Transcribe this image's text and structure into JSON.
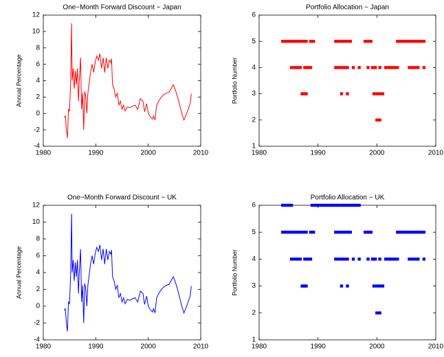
{
  "chart_data": [
    {
      "type": "line",
      "title": "One−Month Forward Discount − Japan",
      "ylabel": "Annual Percentage",
      "color": "#ff0000",
      "xlim": [
        1980,
        2010
      ],
      "xticks": [
        1980,
        1990,
        2000,
        2010
      ],
      "ylim": [
        -4,
        12
      ],
      "yticks": [
        -4,
        -2,
        0,
        2,
        4,
        6,
        8,
        10,
        12
      ],
      "x": [
        1984.0,
        1984.2,
        1984.4,
        1984.6,
        1984.8,
        1985.0,
        1985.2,
        1985.4,
        1985.5,
        1985.7,
        1985.9,
        1986.1,
        1986.3,
        1986.5,
        1986.7,
        1986.9,
        1987.1,
        1987.3,
        1987.5,
        1987.7,
        1987.9,
        1988.1,
        1988.3,
        1988.5,
        1988.8,
        1989.0,
        1989.3,
        1989.6,
        1989.9,
        1990.2,
        1990.5,
        1990.8,
        1991.1,
        1991.4,
        1991.7,
        1992.0,
        1992.3,
        1992.6,
        1992.9,
        1993.0,
        1993.2,
        1993.5,
        1993.8,
        1994.1,
        1994.4,
        1994.7,
        1995.0,
        1995.3,
        1995.6,
        1996.0,
        1996.5,
        1997.0,
        1997.5,
        1998.0,
        1998.5,
        1999.0,
        1999.3,
        1999.7,
        2000.0,
        2000.5,
        2000.8,
        2001.0,
        2001.3,
        2001.6,
        2002.0,
        2002.5,
        2003.0,
        2003.5,
        2004.0,
        2004.5,
        2004.8,
        2005.2,
        2005.6,
        2006.0,
        2006.4,
        2006.8,
        2007.2,
        2007.6,
        2008.0,
        2008.2
      ],
      "values": [
        -0.5,
        -0.3,
        -2.0,
        -3.0,
        0.5,
        0.3,
        3.5,
        11.0,
        4.0,
        5.5,
        3.0,
        5.2,
        3.5,
        5.5,
        1.5,
        4.5,
        6.8,
        0.5,
        2.5,
        -2.0,
        2.7,
        2.0,
        0.0,
        2.5,
        4.0,
        5.0,
        6.0,
        5.0,
        6.3,
        7.0,
        6.5,
        7.3,
        5.5,
        6.8,
        5.0,
        6.8,
        5.5,
        6.5,
        6.2,
        6.7,
        3.5,
        3.0,
        2.0,
        2.5,
        1.0,
        1.5,
        0.5,
        1.0,
        0.3,
        0.8,
        0.7,
        0.9,
        1.0,
        0.5,
        1.8,
        1.5,
        0.2,
        1.2,
        0.0,
        -0.5,
        -0.7,
        -0.3,
        -0.8,
        1.0,
        1.5,
        2.0,
        2.3,
        2.5,
        2.6,
        3.2,
        3.5,
        2.8,
        2.0,
        1.0,
        0.0,
        -0.8,
        -0.2,
        0.5,
        1.2,
        2.4
      ]
    },
    {
      "type": "scatter",
      "title": "Portfolio Allocation − Japan",
      "ylabel": "Portfolio Number",
      "color": "#ff0000",
      "xlim": [
        1980,
        2010
      ],
      "xticks": [
        1980,
        1990,
        2000,
        2010
      ],
      "ylim": [
        1,
        6
      ],
      "yticks": [
        1,
        2,
        3,
        4,
        5,
        6
      ],
      "series": [
        {
          "x": [
            1984,
            1984.5,
            1985,
            1985.5,
            1986,
            1986.5,
            1987,
            1987.5,
            1988,
            1988.75,
            1989.25,
            1993,
            1993.5,
            1994,
            1994.5,
            1995,
            1995.5,
            1998,
            1998.5,
            1999,
            2003.5,
            2004,
            2004.5,
            2005,
            2005.5,
            2006,
            2006.5,
            2007,
            2007.5,
            2008
          ],
          "values": [
            5,
            5,
            5,
            5,
            5,
            5,
            5,
            5,
            5,
            5,
            5,
            5,
            5,
            5,
            5,
            5,
            5,
            5,
            5,
            5,
            5,
            5,
            5,
            5,
            5,
            5,
            5,
            5,
            5,
            5
          ]
        },
        {
          "x": [
            1985.5,
            1986,
            1986.5,
            1987,
            1987.75,
            1988.25,
            1988.75,
            1993,
            1993.5,
            1994,
            1994.5,
            1995,
            1996,
            1997,
            1998.5,
            1999.25,
            1999.75,
            2000.5,
            2001.5,
            2002,
            2002.5,
            2003,
            2003.5,
            2005.5,
            2006,
            2006.5,
            2007,
            2008
          ],
          "values": [
            4,
            4,
            4,
            4,
            4,
            4,
            4,
            4,
            4,
            4,
            4,
            4,
            4,
            4,
            4,
            4,
            4,
            4,
            4,
            4,
            4,
            4,
            4,
            4,
            4,
            4,
            4,
            4
          ]
        },
        {
          "x": [
            1987.3,
            1987.7,
            1988,
            1994,
            1995,
            1999.5,
            2000,
            2000.5,
            2001
          ],
          "values": [
            3,
            3,
            3,
            3,
            3,
            3,
            3,
            3,
            3
          ]
        },
        {
          "x": [
            2000,
            2000.5
          ],
          "values": [
            2,
            2
          ]
        }
      ]
    },
    {
      "type": "line",
      "title": "One−Month Forward Discount − UK",
      "ylabel": "Annual Percentage",
      "color": "#0000ff",
      "xlim": [
        1980,
        2010
      ],
      "xticks": [
        1980,
        1990,
        2000,
        2010
      ],
      "ylim": [
        -4,
        12
      ],
      "yticks": [
        -4,
        -2,
        0,
        2,
        4,
        6,
        8,
        10,
        12
      ],
      "x": [
        1984.0,
        1984.2,
        1984.4,
        1984.6,
        1984.8,
        1985.0,
        1985.2,
        1985.4,
        1985.5,
        1985.7,
        1985.9,
        1986.1,
        1986.3,
        1986.5,
        1986.7,
        1986.9,
        1987.1,
        1987.3,
        1987.5,
        1987.7,
        1987.9,
        1988.1,
        1988.3,
        1988.5,
        1988.8,
        1989.0,
        1989.3,
        1989.6,
        1989.9,
        1990.2,
        1990.5,
        1990.8,
        1991.1,
        1991.4,
        1991.7,
        1992.0,
        1992.3,
        1992.6,
        1992.9,
        1993.0,
        1993.2,
        1993.5,
        1993.8,
        1994.1,
        1994.4,
        1994.7,
        1995.0,
        1995.3,
        1995.6,
        1996.0,
        1996.5,
        1997.0,
        1997.5,
        1998.0,
        1998.5,
        1999.0,
        1999.3,
        1999.7,
        2000.0,
        2000.5,
        2000.8,
        2001.0,
        2001.3,
        2001.6,
        2002.0,
        2002.5,
        2003.0,
        2003.5,
        2004.0,
        2004.5,
        2004.8,
        2005.2,
        2005.6,
        2006.0,
        2006.4,
        2006.8,
        2007.2,
        2007.6,
        2008.0,
        2008.2
      ],
      "values": [
        -0.5,
        -0.3,
        -2.0,
        -3.0,
        0.5,
        0.3,
        3.5,
        11.0,
        4.0,
        5.5,
        3.0,
        5.2,
        3.5,
        5.5,
        1.5,
        4.5,
        6.8,
        0.5,
        2.5,
        -2.0,
        2.7,
        2.0,
        0.0,
        2.5,
        4.0,
        5.0,
        6.0,
        5.0,
        6.3,
        7.0,
        6.5,
        7.3,
        5.5,
        6.8,
        5.0,
        6.8,
        5.5,
        6.5,
        6.2,
        6.7,
        3.5,
        3.0,
        2.0,
        2.5,
        1.0,
        1.5,
        0.5,
        1.0,
        0.3,
        0.8,
        0.7,
        0.9,
        1.0,
        0.5,
        1.8,
        1.5,
        0.2,
        1.2,
        0.0,
        -0.5,
        -0.7,
        -0.3,
        -0.8,
        1.0,
        1.5,
        2.0,
        2.3,
        2.5,
        2.6,
        3.2,
        3.5,
        2.8,
        2.0,
        1.0,
        0.0,
        -0.8,
        -0.2,
        0.5,
        1.2,
        2.4
      ]
    },
    {
      "type": "scatter",
      "title": "Portfolio Allocation − UK",
      "ylabel": "Portfolio Number",
      "color": "#0000ff",
      "xlim": [
        1980,
        2010
      ],
      "xticks": [
        1980,
        1990,
        2000,
        2010
      ],
      "ylim": [
        1,
        6
      ],
      "yticks": [
        1,
        2,
        3,
        4,
        5,
        6
      ],
      "series": [
        {
          "x": [
            1984,
            1984.5,
            1985,
            1985.5,
            1989,
            1989.5,
            1990,
            1990.5,
            1991,
            1991.5,
            1992,
            1992.5,
            1993,
            1993.5,
            1994,
            1994.5,
            1995,
            1995.5,
            1996,
            1996.5,
            1997
          ],
          "values": [
            6,
            6,
            6,
            6,
            6,
            6,
            6,
            6,
            6,
            6,
            6,
            6,
            6,
            6,
            6,
            6,
            6,
            6,
            6,
            6,
            6
          ]
        },
        {
          "x": [
            1984,
            1984.5,
            1985,
            1985.5,
            1986,
            1986.5,
            1987,
            1987.5,
            1988,
            1988.75,
            1989.25,
            1993,
            1993.5,
            1994,
            1994.5,
            1995,
            1995.5,
            1998,
            1998.5,
            1999,
            2003.5,
            2004,
            2004.5,
            2005,
            2005.5,
            2006,
            2006.5,
            2007,
            2007.5,
            2008
          ],
          "values": [
            5,
            5,
            5,
            5,
            5,
            5,
            5,
            5,
            5,
            5,
            5,
            5,
            5,
            5,
            5,
            5,
            5,
            5,
            5,
            5,
            5,
            5,
            5,
            5,
            5,
            5,
            5,
            5,
            5,
            5
          ]
        },
        {
          "x": [
            1985.5,
            1986,
            1986.5,
            1987,
            1987.75,
            1988.25,
            1988.75,
            1993,
            1993.5,
            1994,
            1994.5,
            1995,
            1996,
            1997,
            1998.5,
            1999.25,
            1999.75,
            2000.5,
            2001.5,
            2002,
            2002.5,
            2003,
            2003.5,
            2005.5,
            2006,
            2006.5,
            2007,
            2008
          ],
          "values": [
            4,
            4,
            4,
            4,
            4,
            4,
            4,
            4,
            4,
            4,
            4,
            4,
            4,
            4,
            4,
            4,
            4,
            4,
            4,
            4,
            4,
            4,
            4,
            4,
            4,
            4,
            4,
            4
          ]
        },
        {
          "x": [
            1987.3,
            1987.7,
            1988,
            1994,
            1995,
            1999.5,
            2000,
            2000.5,
            2001
          ],
          "values": [
            3,
            3,
            3,
            3,
            3,
            3,
            3,
            3,
            3
          ]
        },
        {
          "x": [
            2000,
            2000.5
          ],
          "values": [
            2,
            2
          ]
        }
      ]
    }
  ]
}
